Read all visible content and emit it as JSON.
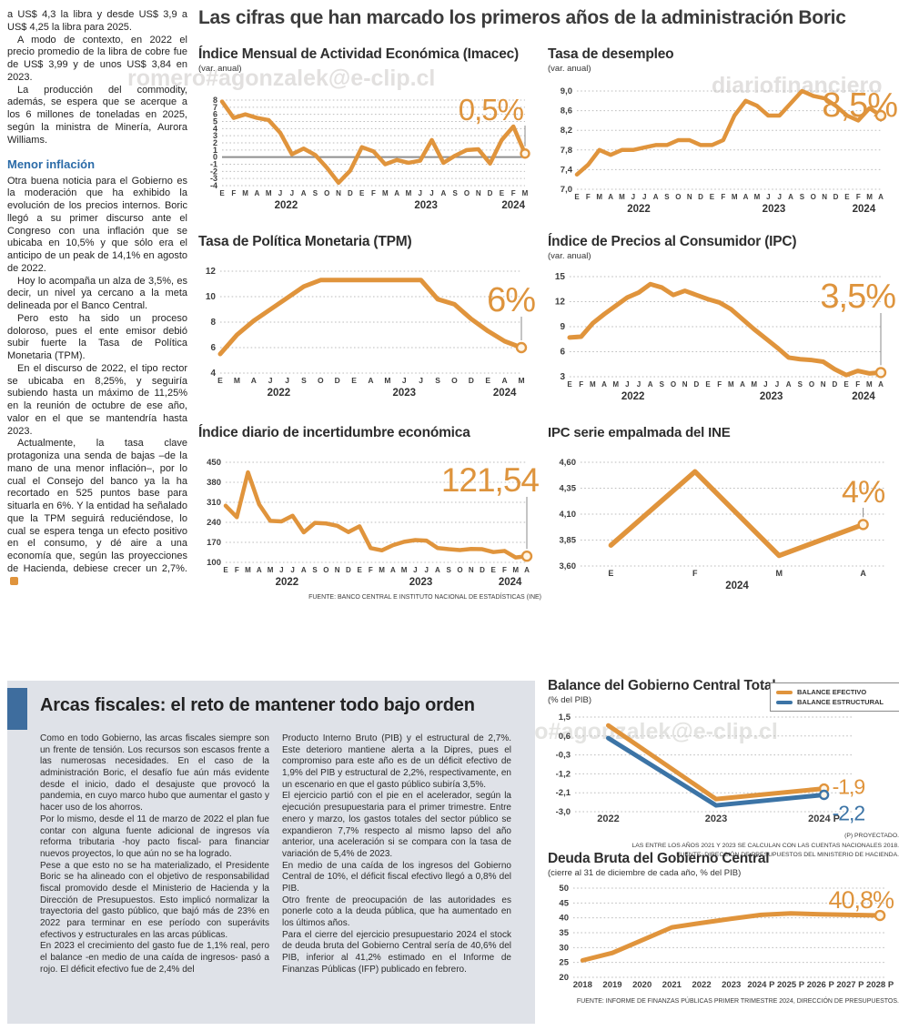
{
  "colors": {
    "line_orange": "#E0943C",
    "line_blue": "#3C74A6",
    "callout_orange": "#DE943D",
    "subhead_blue": "#2B6BA8",
    "panel_bg": "#DFE2E8",
    "accent_bar_blue": "#3E6D9E"
  },
  "watermarks": [
    "romero#agonzalek@e-clip.cl",
    "diariofinanciero",
    "diariofinanciero#agonzalek@e-clip.cl"
  ],
  "headline": "Las cifras que han marcado los primeros años de la administración Boric",
  "left_article": {
    "paragraphs": [
      "a US$ 4,3 la libra y desde US$ 3,9 a US$ 4,25 la libra para 2025.",
      "A modo de contexto, en 2022 el precio promedio de la libra de cobre fue de US$ 3,99 y de unos US$ 3,84 en 2023.",
      "La producción del commodity, además, se espera que se acerque a los 6 millones de toneladas en 2025, según la ministra de Minería, Aurora Williams."
    ],
    "subhead": "Menor inflación",
    "paragraphs2": [
      "Otra buena noticia para el Gobierno es la moderación que ha exhibido la evolución de los precios internos. Boric llegó a su primer discurso ante el Congreso con una inflación que se ubicaba en 10,5% y que sólo era el anticipo de un peak de 14,1% en agosto de 2022.",
      "Hoy lo acompaña un alza de 3,5%, es decir, un nivel ya cercano a la meta delineada por el Banco Central.",
      "Pero esto ha sido un proceso doloroso, pues el ente emisor debió subir fuerte la Tasa de Política Monetaria (TPM).",
      "En el discurso de 2022, el tipo rector se ubicaba en 8,25%, y seguiría subiendo hasta un máximo de 11,25% en la reunión de octubre de ese año, valor en el que se mantendría hasta 2023.",
      "Actualmente, la tasa clave protagoniza una senda de bajas –de la mano de una menor inflación–, por lo cual el Consejo del banco ya la ha recortado en 525 puntos base para situarla en 6%. Y la entidad ha señalado que la TPM seguirá reduciéndose, lo cual se espera tenga un efecto positivo en el consumo, y dé aire a una economía que, según las proyecciones de Hacienda, debiese crecer un 2,7%."
    ]
  },
  "fiscal": {
    "title": "Arcas fiscales: el reto de mantener todo bajo orden",
    "col1": [
      "Como en todo Gobierno, las arcas fiscales siempre son un frente de tensión. Los recursos son escasos frente a las numerosas necesidades. En el caso de la administración Boric, el desafío fue aún más evidente desde el inicio, dado el desajuste que provocó la pandemia, en cuyo marco hubo que aumentar el gasto y hacer uso de los ahorros.",
      "Por lo mismo, desde el 11 de marzo de 2022 el plan fue contar con alguna fuente adicional de ingresos vía reforma tributaria -hoy pacto fiscal- para financiar nuevos proyectos, lo que aún no se ha logrado.",
      "Pese a que esto no se ha materializado, el Presidente Boric se ha alineado con el objetivo de responsabilidad fiscal promovido desde el Ministerio de Hacienda y la Dirección de Presupuestos. Esto implicó normalizar la trayectoria del gasto público, que bajó más de 23% en 2022 para terminar en ese período con superávits efectivos y estructurales en las arcas públicas.",
      "En 2023 el crecimiento del gasto fue de 1,1% real, pero el balance -en medio de una caída de ingresos-  pasó a rojo. El déficit efectivo fue de 2,4% del"
    ],
    "col2": [
      "Producto Interno Bruto (PIB) y el estructural de 2,7%. Este deterioro mantiene alerta a la Dipres, pues el compromiso para este año es de un déficit efectivo de 1,9% del PIB y estructural de 2,2%, respectivamente, en un escenario en que el gasto público subiría 3,5%.",
      "El ejercicio partió con el pie en el acelerador, según la ejecución presupuestaria para el primer trimestre. Entre enero y marzo, los gastos totales del sector público se expandieron 7,7% respecto al mismo lapso del año anterior, una aceleración si se compara con la tasa de variación de 5,4% de 2023.",
      "En medio de una caída de los ingresos del Gobierno Central de 10%, el déficit fiscal efectivo llegó a 0,8% del PIB.",
      "Otro frente de preocupación de las autoridades es ponerle coto a la deuda pública, que ha aumentado en los últimos años.",
      "Para el cierre del ejercicio presupuestario 2024 el stock de deuda bruta del Gobierno Central sería de 40,6% del PIB, inferior al 41,2% estimado en el Informe de Finanzas Públicas (IFP) publicado en febrero."
    ]
  },
  "chart_data": [
    {
      "key": "imacec",
      "type": "line",
      "title": "Índice Mensual de Actividad Económica (Imacec)",
      "subtitle": "(var. anual)",
      "callout": "0,5%",
      "ylim": [
        -4,
        8
      ],
      "ytick_values": [
        8,
        7,
        6,
        5,
        4,
        3,
        2,
        1,
        0,
        -1,
        -2,
        -3,
        -4
      ],
      "ytick_labels": [
        "8",
        "7",
        "6",
        "5",
        "4",
        "3",
        "2",
        "1",
        "0",
        "-1",
        "-2",
        "-3",
        "-4"
      ],
      "zero_line": 0,
      "x": [
        "E",
        "F",
        "M",
        "A",
        "M",
        "J",
        "J",
        "A",
        "S",
        "O",
        "N",
        "D",
        "E",
        "F",
        "M",
        "A",
        "M",
        "J",
        "J",
        "A",
        "S",
        "O",
        "N",
        "D",
        "E",
        "F",
        "M"
      ],
      "year_labels": [
        {
          "text": "2022",
          "index": 5.5
        },
        {
          "text": "2023",
          "index": 17.5
        },
        {
          "text": "2024",
          "index": 25
        }
      ],
      "series": [
        {
          "name": "Imacec",
          "color": "#E0943C",
          "callout": "0,5%",
          "values": [
            7.8,
            5.5,
            6.0,
            5.5,
            5.2,
            3.4,
            0.4,
            1.2,
            0.3,
            -1.5,
            -3.6,
            -1.9,
            1.4,
            0.8,
            -1.0,
            -0.4,
            -0.8,
            -0.5,
            2.4,
            -0.8,
            0.2,
            1.0,
            1.1,
            -0.9,
            2.4,
            4.3,
            0.5
          ]
        }
      ],
      "grid": "dotted-horizontal",
      "legend_position": null
    },
    {
      "key": "desempleo",
      "type": "line",
      "title": "Tasa de desempleo",
      "subtitle": "(var. anual)",
      "callout": "8,5%",
      "ylim": [
        7.0,
        9.0
      ],
      "ytick_values": [
        9.0,
        8.6,
        8.2,
        7.8,
        7.4,
        7.0
      ],
      "ytick_labels": [
        "9,0",
        "8,6",
        "8,2",
        "7,8",
        "7,4",
        "7,0"
      ],
      "x": [
        "E",
        "F",
        "M",
        "A",
        "M",
        "J",
        "J",
        "A",
        "S",
        "O",
        "N",
        "D",
        "E",
        "F",
        "M",
        "A",
        "M",
        "J",
        "J",
        "A",
        "S",
        "O",
        "N",
        "D",
        "E",
        "F",
        "M",
        "A"
      ],
      "year_labels": [
        {
          "text": "2022",
          "index": 5.5
        },
        {
          "text": "2023",
          "index": 17.5
        },
        {
          "text": "2024",
          "index": 25.5
        }
      ],
      "series": [
        {
          "name": "Tasa de desempleo",
          "color": "#E0943C",
          "callout": "8,5%",
          "values": [
            7.3,
            7.5,
            7.8,
            7.7,
            7.8,
            7.8,
            7.85,
            7.9,
            7.9,
            8.0,
            8.0,
            7.9,
            7.9,
            8.0,
            8.5,
            8.8,
            8.7,
            8.5,
            8.5,
            8.75,
            9.0,
            8.9,
            8.85,
            8.7,
            8.5,
            8.4,
            8.65,
            8.5
          ]
        }
      ],
      "grid": "dotted-horizontal",
      "legend_position": null
    },
    {
      "key": "tpm",
      "type": "line",
      "title": "Tasa de Política Monetaria (TPM)",
      "subtitle": null,
      "callout": "6%",
      "ylim": [
        4,
        12
      ],
      "ytick_values": [
        12,
        10,
        8,
        6,
        4
      ],
      "ytick_labels": [
        "12",
        "10",
        "8",
        "6",
        "4"
      ],
      "x": [
        "E",
        "M",
        "A",
        "J",
        "J",
        "S",
        "O",
        "D",
        "E",
        "A",
        "M",
        "J",
        "J",
        "S",
        "O",
        "D",
        "E",
        "A",
        "M"
      ],
      "year_labels": [
        {
          "text": "2022",
          "index": 3.5
        },
        {
          "text": "2023",
          "index": 11
        },
        {
          "text": "2024",
          "index": 17
        }
      ],
      "series": [
        {
          "name": "TPM",
          "color": "#E0943C",
          "callout": "6%",
          "values": [
            5.5,
            7.0,
            8.1,
            9.0,
            9.9,
            10.8,
            11.3,
            11.3,
            11.3,
            11.3,
            11.3,
            11.3,
            11.3,
            9.8,
            9.4,
            8.25,
            7.3,
            6.5,
            6.0
          ]
        }
      ],
      "grid": "dotted-horizontal",
      "legend_position": null
    },
    {
      "key": "ipc",
      "type": "line",
      "title": "Índice de Precios al Consumidor (IPC)",
      "subtitle": "(var. anual)",
      "callout": "3,5%",
      "ylim": [
        3,
        15
      ],
      "ytick_values": [
        15,
        12,
        9,
        6,
        3
      ],
      "ytick_labels": [
        "15",
        "12",
        "9",
        "6",
        "3"
      ],
      "x": [
        "E",
        "F",
        "M",
        "A",
        "M",
        "J",
        "J",
        "A",
        "S",
        "O",
        "N",
        "D",
        "E",
        "F",
        "M",
        "A",
        "M",
        "J",
        "J",
        "A",
        "S",
        "O",
        "N",
        "D",
        "E",
        "F",
        "M",
        "A"
      ],
      "year_labels": [
        {
          "text": "2022",
          "index": 5.5
        },
        {
          "text": "2023",
          "index": 17.5
        },
        {
          "text": "2024",
          "index": 25.5
        }
      ],
      "series": [
        {
          "name": "IPC",
          "color": "#E0943C",
          "callout": "3,5%",
          "values": [
            7.7,
            7.8,
            9.4,
            10.5,
            11.5,
            12.5,
            13.1,
            14.1,
            13.7,
            12.8,
            13.3,
            12.8,
            12.3,
            11.9,
            11.1,
            9.9,
            8.7,
            7.6,
            6.5,
            5.3,
            5.1,
            5.0,
            4.8,
            3.9,
            3.2,
            3.7,
            3.4,
            3.5
          ]
        }
      ],
      "grid": "dotted-horizontal",
      "legend_position": null
    },
    {
      "key": "incertidumbre",
      "type": "line",
      "title": "Índice diario de incertidumbre económica",
      "subtitle": null,
      "callout": "121,54",
      "ylim": [
        100,
        450
      ],
      "ytick_values": [
        450,
        380,
        310,
        240,
        170,
        100
      ],
      "ytick_labels": [
        "450",
        "380",
        "310",
        "240",
        "170",
        "100"
      ],
      "x": [
        "E",
        "F",
        "M",
        "A",
        "M",
        "J",
        "J",
        "A",
        "S",
        "O",
        "N",
        "D",
        "E",
        "F",
        "M",
        "A",
        "M",
        "J",
        "J",
        "A",
        "S",
        "O",
        "N",
        "D",
        "E",
        "F",
        "M",
        "A"
      ],
      "year_labels": [
        {
          "text": "2022",
          "index": 5.5
        },
        {
          "text": "2023",
          "index": 17.5
        },
        {
          "text": "2024",
          "index": 25.5
        }
      ],
      "series": [
        {
          "name": "Incertidumbre económica",
          "color": "#E0943C",
          "callout": "121,54",
          "values": [
            298,
            258,
            415,
            303,
            245,
            243,
            263,
            205,
            238,
            236,
            228,
            206,
            226,
            150,
            142,
            160,
            172,
            178,
            176,
            150,
            146,
            143,
            147,
            146,
            136,
            140,
            117,
            121.54
          ]
        }
      ],
      "source": "FUENTE: BANCO CENTRAL E INSTITUTO NACIONAL DE ESTADÍSTICAS (INE)",
      "grid": "dotted-horizontal",
      "legend_position": null
    },
    {
      "key": "ipc_ine",
      "type": "line",
      "title": "IPC serie empalmada del INE",
      "subtitle": null,
      "callout": "4%",
      "ylim": [
        3.6,
        4.6
      ],
      "ytick_values": [
        4.6,
        4.35,
        4.1,
        3.85,
        3.6
      ],
      "ytick_labels": [
        "4,60",
        "4,35",
        "4,10",
        "3,85",
        "3,60"
      ],
      "x": [
        "E",
        "F",
        "M",
        "A"
      ],
      "year_labels": [
        {
          "text": "2024",
          "index": 1.5
        }
      ],
      "series": [
        {
          "name": "IPC serie empalmada",
          "color": "#E0943C",
          "callout": "4%",
          "values": [
            3.8,
            4.51,
            3.7,
            4.0
          ]
        }
      ],
      "grid": "dotted-horizontal",
      "legend_position": null
    },
    {
      "key": "balance",
      "type": "line",
      "title": "Balance del Gobierno Central Total",
      "subtitle": "(% del PIB)",
      "ylim": [
        -3.0,
        1.5
      ],
      "ytick_values": [
        1.5,
        0.6,
        -0.3,
        -1.2,
        -2.1,
        -3.0
      ],
      "ytick_labels": [
        "1,5",
        "0,6",
        "-0,3",
        "-1,2",
        "-2,1",
        "-3,0"
      ],
      "x": [
        "2022",
        "2023",
        "2024 P"
      ],
      "year_labels": [],
      "legend": [
        "BALANCE EFECTIVO",
        "BALANCE ESTRUCTURAL"
      ],
      "legend_position": "top-right",
      "series": [
        {
          "name": "Balance efectivo",
          "color": "#E0943C",
          "callout": "-1,9",
          "values": [
            1.1,
            -2.4,
            -1.9
          ]
        },
        {
          "name": "Balance estructural",
          "color": "#3C74A6",
          "callout": "-2,2",
          "values": [
            0.5,
            -2.7,
            -2.2
          ]
        }
      ],
      "footnotes": [
        "(P) PROYECTADO.",
        "LAS ENTRE LOS AÑOS 2021 Y 2023 SE CALCULAN  CON LAS CUENTAS NACIONALES 2018.",
        "FUENTE: DIRECCIÓN DE PRESUPUESTOS DEL MINISTERIO DE HACIENDA."
      ],
      "grid": "dotted-horizontal"
    },
    {
      "key": "deuda",
      "type": "line",
      "title": "Deuda Bruta del Gobierno Central",
      "subtitle": "(cierre al 31 de diciembre de cada año, % del PIB)",
      "callout": "40,8%",
      "ylim": [
        20,
        50
      ],
      "ytick_values": [
        50,
        45,
        40,
        35,
        30,
        25,
        20
      ],
      "ytick_labels": [
        "50",
        "45",
        "40",
        "35",
        "30",
        "25",
        "20"
      ],
      "x": [
        "2018",
        "2019",
        "2020",
        "2021",
        "2022",
        "2023",
        "2024 P",
        "2025 P",
        "2026 P",
        "2027 P",
        "2028 P"
      ],
      "year_labels": [],
      "series": [
        {
          "name": "Deuda bruta",
          "color": "#E0943C",
          "callout": "40,8%",
          "values": [
            25.7,
            28.2,
            32.5,
            36.8,
            38.3,
            39.7,
            41.0,
            41.5,
            41.2,
            41.0,
            40.8
          ]
        }
      ],
      "source": "FUENTE: INFORME DE FINANZAS PÚBLICAS PRIMER TRIMESTRE 2024, DIRECCIÓN DE PRESUPUESTOS.",
      "grid": "dotted-horizontal",
      "legend_position": null
    }
  ]
}
